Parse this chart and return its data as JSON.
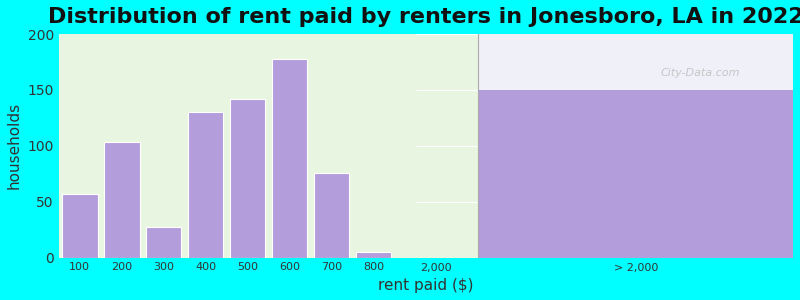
{
  "title": "Distribution of rent paid by renters in Jonesboro, LA in 2022",
  "xlabel": "rent paid ($)",
  "ylabel": "households",
  "background_outer": "#00FFFF",
  "background_inner_left": "#e8f5e0",
  "background_inner_right": "#f0f0f8",
  "bar_color": "#b39ddb",
  "bar_edge_color": "#ffffff",
  "ylim": [
    0,
    200
  ],
  "yticks": [
    0,
    50,
    100,
    150,
    200
  ],
  "hist_bins": [
    "100",
    "200",
    "300",
    "400",
    "500",
    "600",
    "700",
    "800"
  ],
  "hist_values": [
    57,
    103,
    27,
    130,
    142,
    178,
    76,
    5
  ],
  "special_bar_value": 150,
  "special_bar_label": "> 2,000",
  "x_tick_labels": [
    "100",
    "200",
    "300",
    "400",
    "500",
    "600",
    "700",
    "800",
    "",
    "2,000",
    "",
    "> 2,000"
  ],
  "title_fontsize": 16,
  "axis_label_fontsize": 11
}
